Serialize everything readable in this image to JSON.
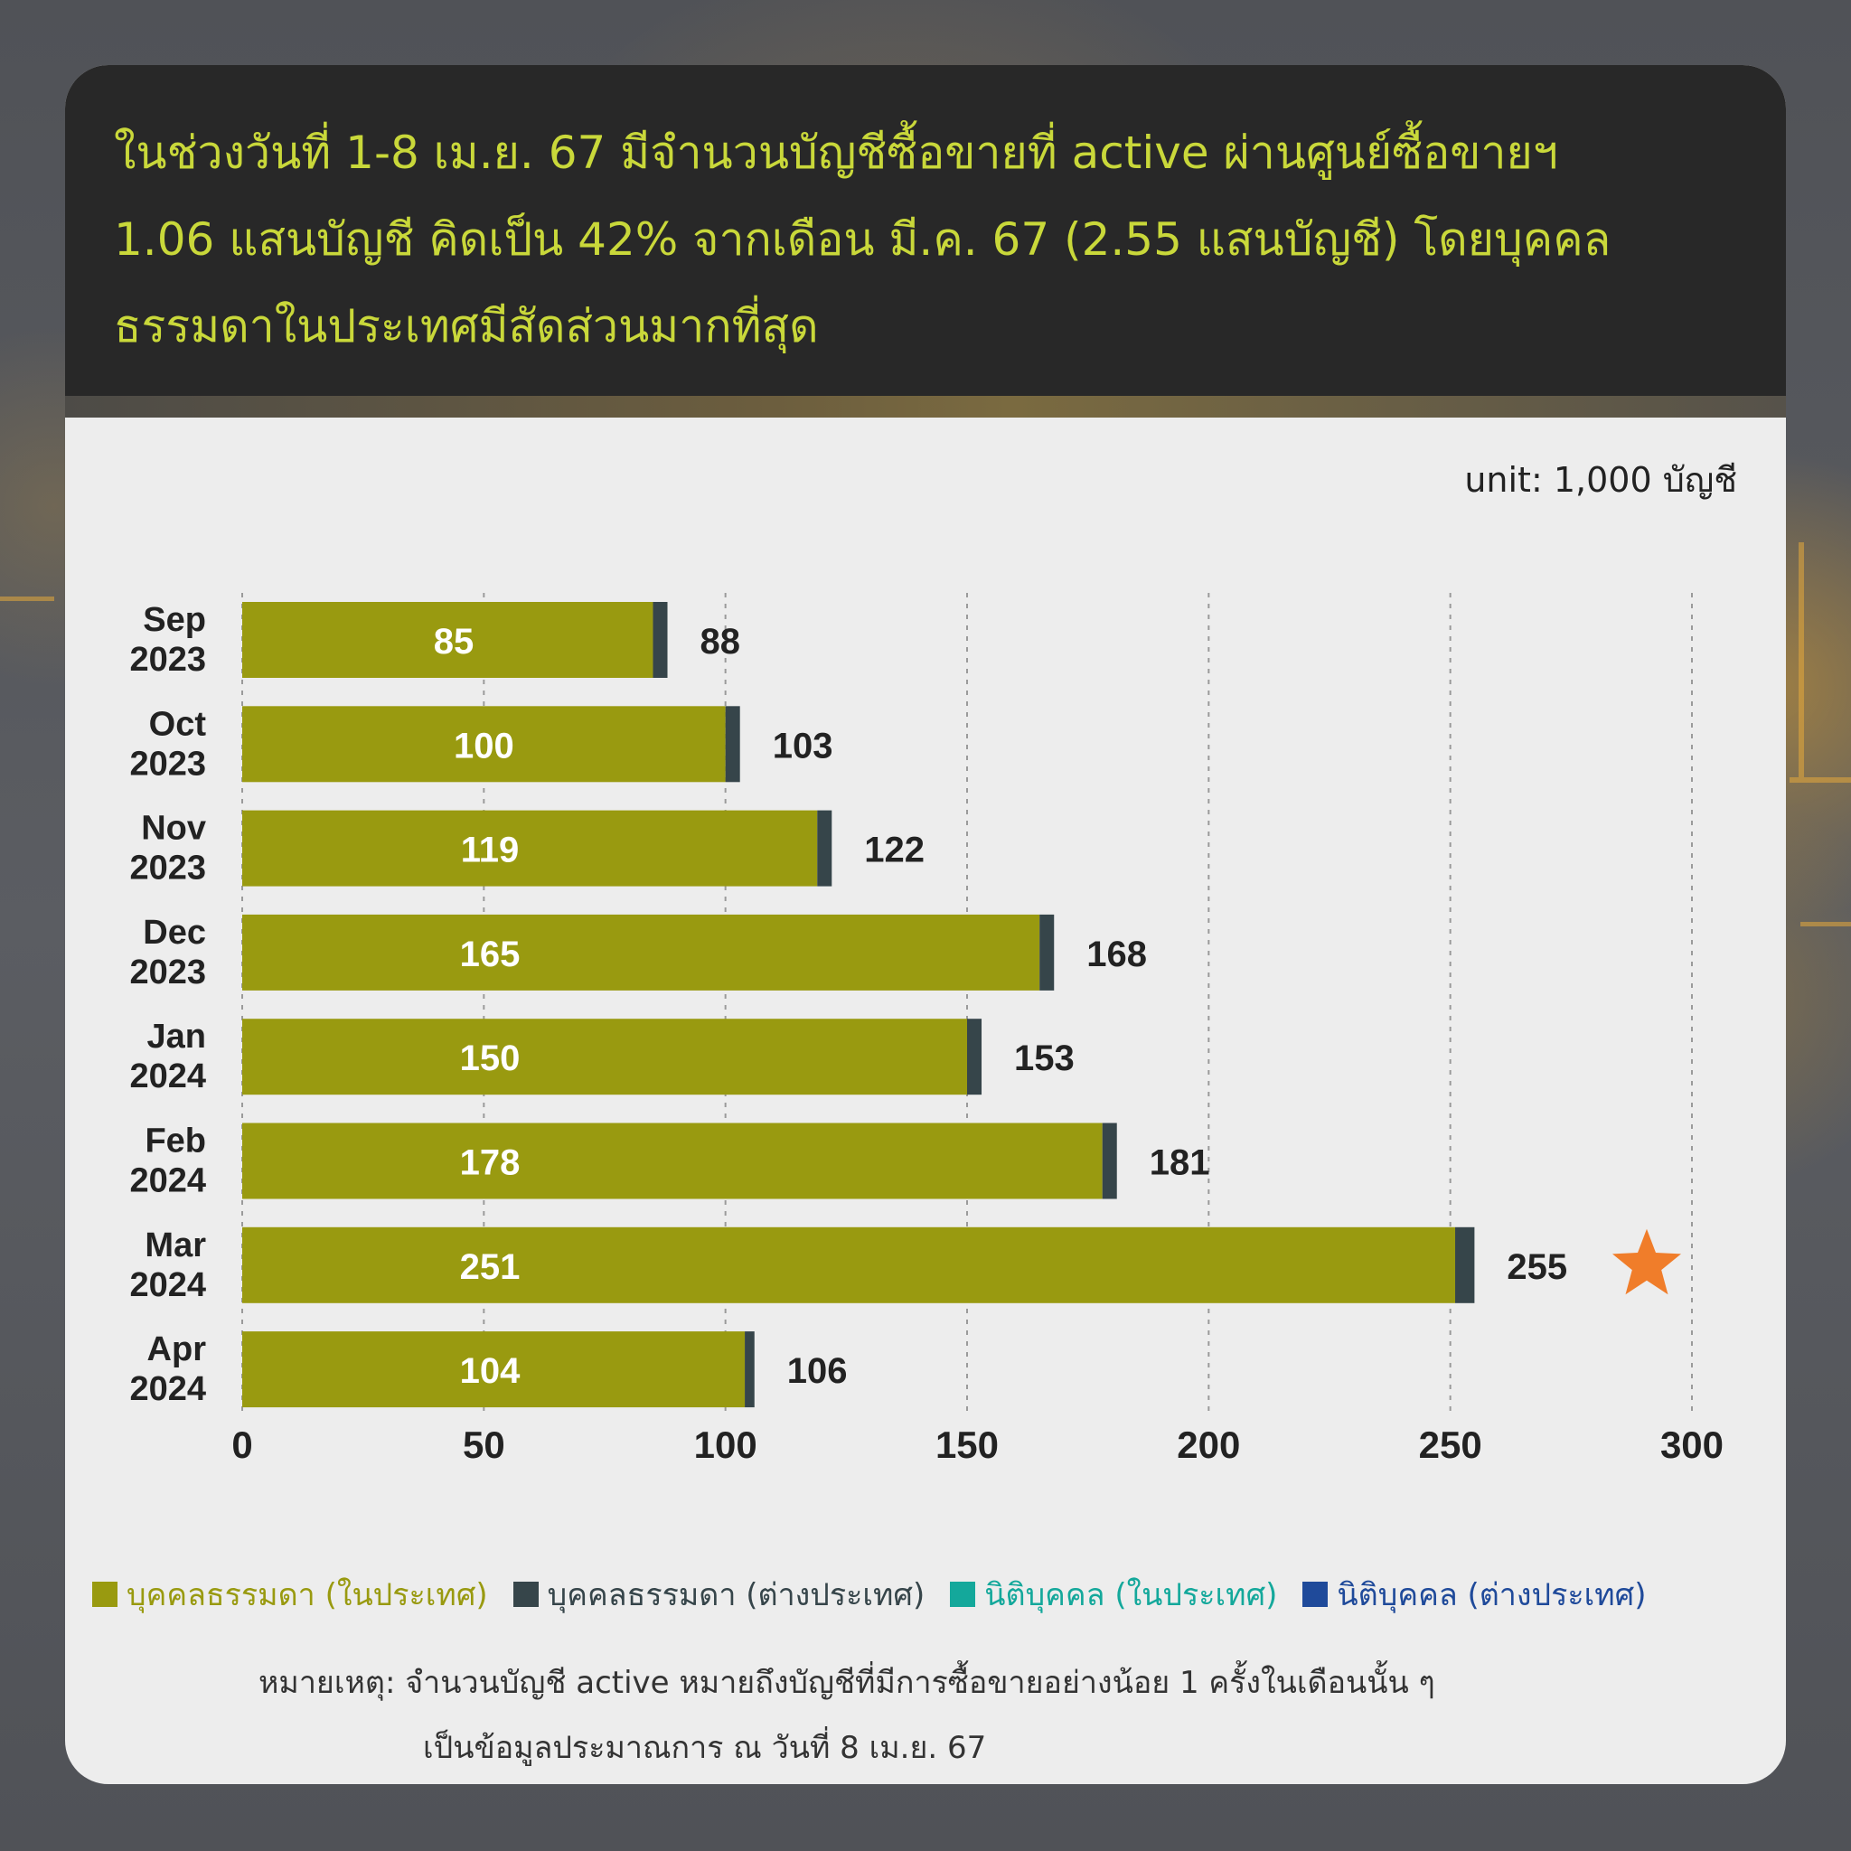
{
  "header": {
    "title_lines": [
      "ในช่วงวันที่ 1-8  เม.ย. 67 มีจำนวนบัญชีซื้อขายที่ active ผ่านศูนย์ซื้อขายฯ",
      "1.06 แสนบัญชี คิดเป็น 42% จากเดือน มี.ค. 67 (2.55 แสนบัญชี) โดยบุคคล",
      "ธรรมดาในประเทศมีสัดส่วนมากที่สุด"
    ]
  },
  "unit_label": "unit: 1,000 บัญชี",
  "chart_data": {
    "type": "bar",
    "orientation": "horizontal",
    "stacked": true,
    "categories": [
      [
        "Sep",
        "2023"
      ],
      [
        "Oct",
        "2023"
      ],
      [
        "Nov",
        "2023"
      ],
      [
        "Dec",
        "2023"
      ],
      [
        "Jan",
        "2024"
      ],
      [
        "Feb",
        "2024"
      ],
      [
        "Mar",
        "2024"
      ],
      [
        "Apr",
        "2024"
      ]
    ],
    "series": [
      {
        "name": "บุคคลธรรมดา (ในประเทศ)",
        "color": "#999a10",
        "values": [
          85,
          100,
          119,
          165,
          150,
          178,
          251,
          104
        ]
      },
      {
        "name": "บุคคลธรรมดา (ต่างประเทศ)",
        "color": "#36454a",
        "values": [
          3,
          3,
          3,
          3,
          3,
          3,
          4,
          2
        ]
      },
      {
        "name": "นิติบุคคล (ในประเทศ)",
        "color": "#14a89b",
        "values": [
          0,
          0,
          0,
          0,
          0,
          0,
          0,
          0
        ]
      },
      {
        "name": "นิติบุคคล (ต่างประเทศ)",
        "color": "#1f4a9a",
        "values": [
          0,
          0,
          0,
          0,
          0,
          0,
          0,
          0
        ]
      }
    ],
    "inner_labels": [
      "85",
      "100",
      "119",
      "165",
      "150",
      "178",
      "251",
      "104"
    ],
    "total_labels": [
      "88",
      "103",
      "122",
      "168",
      "153",
      "181",
      "255",
      "106"
    ],
    "xlim": [
      0,
      300
    ],
    "xticks": [
      "0",
      "50",
      "100",
      "150",
      "200",
      "250",
      "300"
    ],
    "grid": "vertical-dashed",
    "highlight": {
      "category_index": 6,
      "marker": "star",
      "color": "#f07d2a"
    },
    "legend_position": "bottom"
  },
  "legend_text_colors": [
    "#999a10",
    "#36454a",
    "#14a89b",
    "#1f4a9a"
  ],
  "note_lines": [
    "หมายเหตุ: จำนวนบัญชี active หมายถึงบัญชีที่มีการซื้อขายอย่างน้อย 1 ครั้งในเดือนนั้น ๆ",
    "เป็นข้อมูลประมาณการ ณ วันที่ 8 เม.ย. 67"
  ]
}
